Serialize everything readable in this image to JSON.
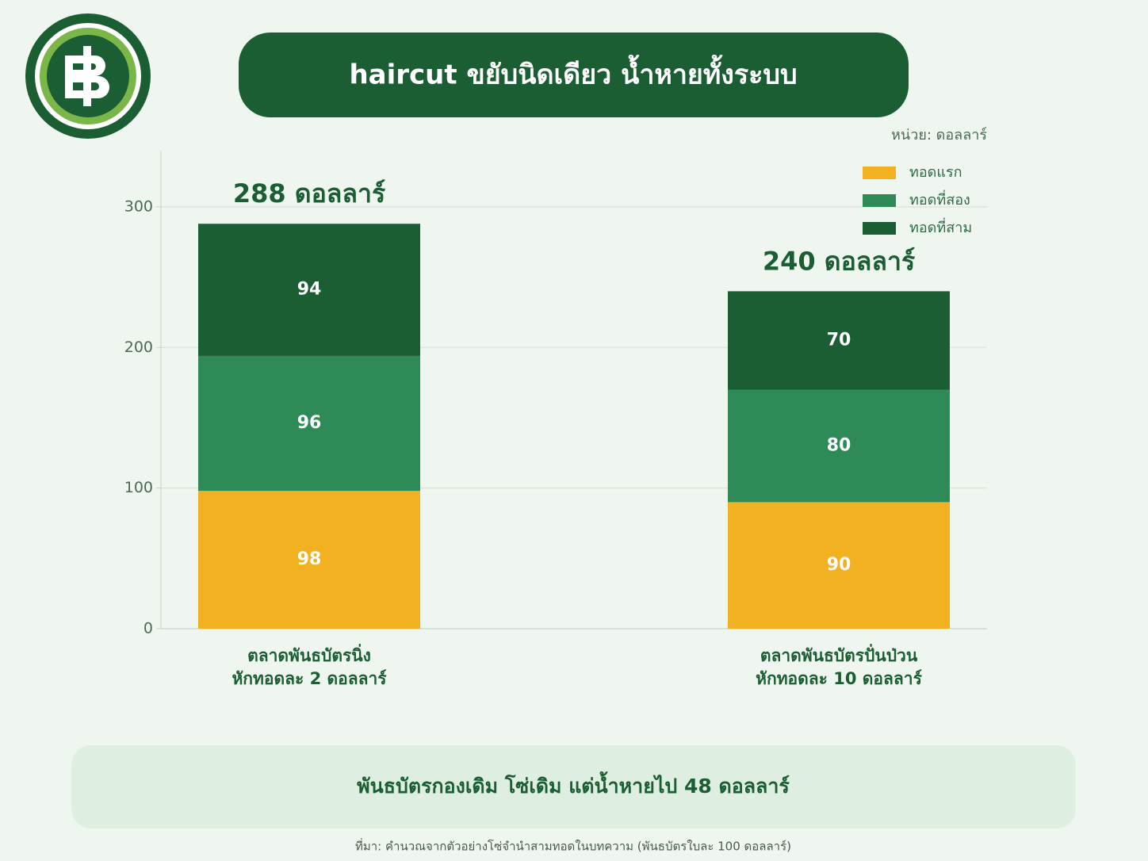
{
  "chart_data": {
    "type": "stacked_bar",
    "title": "haircut ขยับนิดเดียว น้ำหายทั้งระบบ",
    "unit_label": "หน่วย: ดอลลาร์",
    "categories": [
      [
        "ตลาดพันธบัตรนิ่ง",
        "หักทอดละ 2 ดอลลาร์"
      ],
      [
        "ตลาดพันธบัตรปั่นป่วน",
        "หักทอดละ 10 ดอลลาร์"
      ]
    ],
    "total_labels": [
      "288 ดอลลาร์",
      "240 ดอลลาร์"
    ],
    "series": [
      {
        "name": "ทอดแรก",
        "color": "#f2b120",
        "values": [
          98,
          90
        ]
      },
      {
        "name": "ทอดที่สอง",
        "color": "#2e8b57",
        "values": [
          96,
          80
        ]
      },
      {
        "name": "ทอดที่สาม",
        "color": "#1b5e34",
        "values": [
          94,
          70
        ]
      }
    ],
    "ylim": [
      0,
      340
    ],
    "yticks": [
      0,
      100,
      200,
      300
    ],
    "grid": true,
    "legend": "upper right",
    "callout": "พันธบัตรกองเดิม โซ่เดิม แต่น้ำหายไป 48 ดอลลาร์",
    "source": "ที่มา: คำนวณจากตัวอย่างโซ่จำนำสามทอดในบทความ (พันธบัตรใบละ 100 ดอลลาร์)"
  }
}
